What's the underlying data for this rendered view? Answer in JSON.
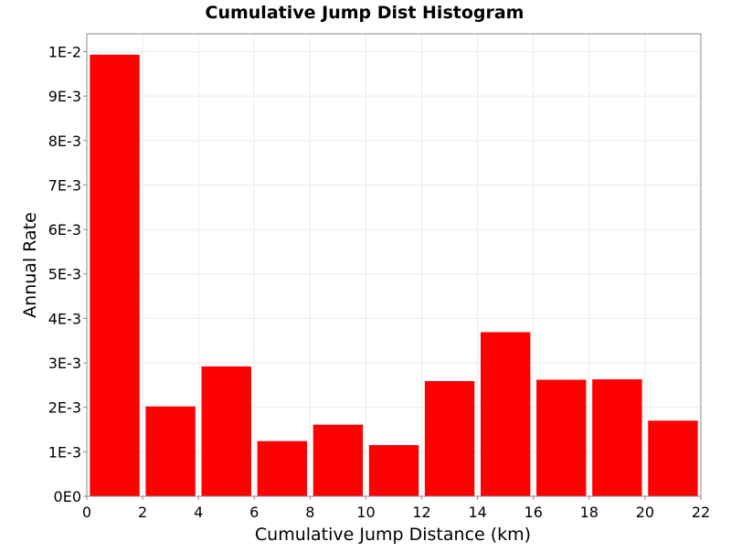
{
  "chart_data": {
    "type": "bar",
    "title": "Cumulative Jump Dist Histogram",
    "xlabel": "Cumulative Jump Distance (km)",
    "ylabel": "Annual Rate",
    "xlim": [
      0,
      22
    ],
    "ylim": [
      0,
      0.0104
    ],
    "x_ticks": [
      0,
      2,
      4,
      6,
      8,
      10,
      12,
      14,
      16,
      18,
      20,
      22
    ],
    "x_tick_labels": [
      "0",
      "2",
      "4",
      "6",
      "8",
      "10",
      "12",
      "14",
      "16",
      "18",
      "20",
      "22"
    ],
    "y_ticks": [
      0,
      0.001,
      0.002,
      0.003,
      0.004,
      0.005,
      0.006,
      0.007,
      0.008,
      0.009,
      0.01
    ],
    "y_tick_labels": [
      "0E0",
      "1E-3",
      "2E-3",
      "3E-3",
      "4E-3",
      "5E-3",
      "6E-3",
      "7E-3",
      "8E-3",
      "9E-3",
      "1E-2"
    ],
    "grid": true,
    "bin_width": 2,
    "bar_color": "#ff0000",
    "bins": [
      {
        "x": 1,
        "value": 0.00993
      },
      {
        "x": 3,
        "value": 0.00202
      },
      {
        "x": 5,
        "value": 0.00292
      },
      {
        "x": 7,
        "value": 0.00124
      },
      {
        "x": 9,
        "value": 0.00161
      },
      {
        "x": 11,
        "value": 0.00115
      },
      {
        "x": 13,
        "value": 0.00259
      },
      {
        "x": 15,
        "value": 0.00369
      },
      {
        "x": 17,
        "value": 0.00262
      },
      {
        "x": 19,
        "value": 0.00263
      },
      {
        "x": 21,
        "value": 0.0017
      }
    ]
  }
}
